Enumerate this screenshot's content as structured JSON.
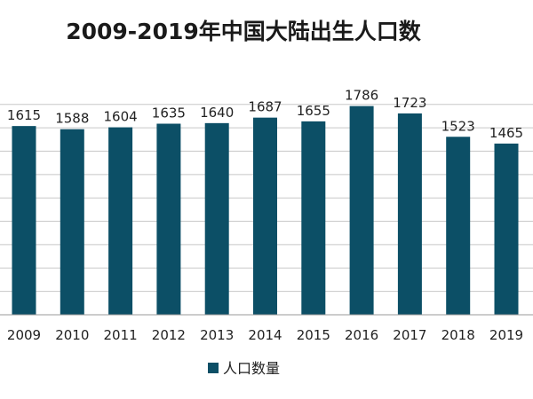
{
  "chart_data": {
    "type": "bar",
    "title": "2009-2019年中国大陆出生人口数",
    "xlabel": "",
    "ylabel": "",
    "categories": [
      "2009",
      "2010",
      "2011",
      "2012",
      "2013",
      "2014",
      "2015",
      "2016",
      "2017",
      "2018",
      "2019"
    ],
    "series": [
      {
        "name": "人口数量",
        "values": [
          1615,
          1588,
          1604,
          1635,
          1640,
          1687,
          1655,
          1786,
          1723,
          1523,
          1465
        ]
      }
    ],
    "ylim": [
      0,
      1900
    ],
    "grid": true,
    "legend": "bottom",
    "colors": {
      "bar": "#0c4f66",
      "grid": "#c8c8c8",
      "axis": "#9a9a9a"
    }
  }
}
